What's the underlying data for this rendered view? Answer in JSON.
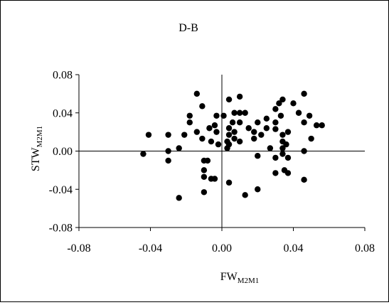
{
  "chart_data": {
    "type": "scatter",
    "title": "D-B",
    "xlabel": {
      "main": "FW",
      "sub": "M2M1"
    },
    "ylabel": {
      "main": "STW",
      "sub": "M2M1"
    },
    "xlim": [
      -0.08,
      0.08
    ],
    "ylim": [
      -0.08,
      0.08
    ],
    "xticks": [
      "-0.08",
      "-0.04",
      "0.00",
      "0.04",
      "0.08"
    ],
    "yticks": [
      "-0.08",
      "-0.04",
      "0.00",
      "0.04",
      "0.08"
    ],
    "xtick_values": [
      -0.08,
      -0.04,
      0.0,
      0.04,
      0.08
    ],
    "ytick_values": [
      -0.08,
      -0.04,
      0.0,
      0.04,
      0.08
    ],
    "grid": false,
    "legend": "none",
    "marker_color": "#000000",
    "points": [
      [
        -0.044,
        -0.003
      ],
      [
        -0.041,
        0.017
      ],
      [
        -0.03,
        0.017
      ],
      [
        -0.03,
        0.0
      ],
      [
        -0.03,
        -0.01
      ],
      [
        -0.024,
        0.003
      ],
      [
        -0.024,
        -0.049
      ],
      [
        -0.021,
        0.017
      ],
      [
        -0.018,
        0.03
      ],
      [
        -0.018,
        0.037
      ],
      [
        -0.014,
        0.06
      ],
      [
        -0.014,
        0.02
      ],
      [
        -0.011,
        0.047
      ],
      [
        -0.011,
        0.013
      ],
      [
        -0.01,
        -0.01
      ],
      [
        -0.01,
        -0.02
      ],
      [
        -0.01,
        -0.027
      ],
      [
        -0.01,
        -0.043
      ],
      [
        -0.008,
        -0.01
      ],
      [
        -0.007,
        0.024
      ],
      [
        -0.006,
        0.01
      ],
      [
        -0.006,
        -0.029
      ],
      [
        -0.004,
        0.027
      ],
      [
        -0.004,
        -0.029
      ],
      [
        -0.003,
        0.037
      ],
      [
        -0.003,
        0.02
      ],
      [
        -0.002,
        0.007
      ],
      [
        0.001,
        0.037
      ],
      [
        0.003,
        0.003
      ],
      [
        0.003,
        0.01
      ],
      [
        0.004,
        0.017
      ],
      [
        0.004,
        0.007
      ],
      [
        0.004,
        0.054
      ],
      [
        0.004,
        0.024
      ],
      [
        0.004,
        -0.033
      ],
      [
        0.006,
        0.03
      ],
      [
        0.007,
        0.013
      ],
      [
        0.007,
        0.04
      ],
      [
        0.007,
        0.02
      ],
      [
        0.01,
        0.057
      ],
      [
        0.01,
        0.04
      ],
      [
        0.01,
        0.03
      ],
      [
        0.01,
        0.01
      ],
      [
        0.013,
        0.04
      ],
      [
        0.013,
        -0.046
      ],
      [
        0.015,
        0.024
      ],
      [
        0.018,
        0.02
      ],
      [
        0.018,
        0.013
      ],
      [
        0.02,
        0.03
      ],
      [
        0.02,
        -0.005
      ],
      [
        0.02,
        -0.04
      ],
      [
        0.022,
        0.017
      ],
      [
        0.025,
        0.024
      ],
      [
        0.025,
        0.034
      ],
      [
        0.027,
        0.003
      ],
      [
        0.03,
        0.044
      ],
      [
        0.03,
        0.03
      ],
      [
        0.03,
        0.023
      ],
      [
        0.03,
        -0.007
      ],
      [
        0.03,
        -0.023
      ],
      [
        0.032,
        0.05
      ],
      [
        0.033,
        0.037
      ],
      [
        0.034,
        0.054
      ],
      [
        0.034,
        0.017
      ],
      [
        0.034,
        0.01
      ],
      [
        0.034,
        0.003
      ],
      [
        0.034,
        -0.003
      ],
      [
        0.035,
        -0.02
      ],
      [
        0.036,
        0.007
      ],
      [
        0.037,
        0.02
      ],
      [
        0.037,
        -0.007
      ],
      [
        0.037,
        -0.023
      ],
      [
        0.04,
        0.05
      ],
      [
        0.043,
        0.04
      ],
      [
        0.046,
        0.06
      ],
      [
        0.046,
        0.03
      ],
      [
        0.046,
        0.0
      ],
      [
        0.046,
        -0.03
      ],
      [
        0.049,
        0.037
      ],
      [
        0.05,
        0.013
      ],
      [
        0.053,
        0.027
      ],
      [
        0.056,
        0.027
      ]
    ]
  }
}
